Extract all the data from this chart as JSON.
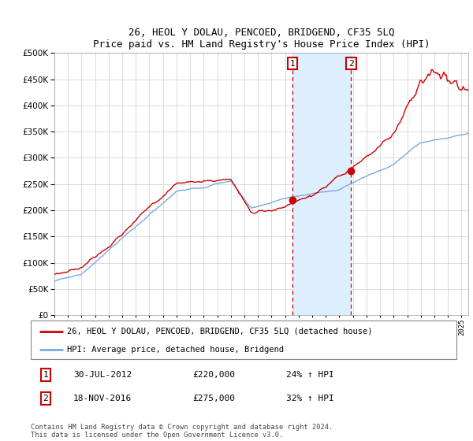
{
  "title": "26, HEOL Y DOLAU, PENCOED, BRIDGEND, CF35 5LQ",
  "subtitle": "Price paid vs. HM Land Registry's House Price Index (HPI)",
  "ytick_values": [
    0,
    50000,
    100000,
    150000,
    200000,
    250000,
    300000,
    350000,
    400000,
    450000,
    500000
  ],
  "ylim": [
    0,
    500000
  ],
  "x_start_year": 1995,
  "x_end_year": 2025,
  "transaction1_x": 2012.54,
  "transaction1_price": 220000,
  "transaction1_label": "30-JUL-2012",
  "transaction1_pct": "24%",
  "transaction2_x": 2016.87,
  "transaction2_price": 275000,
  "transaction2_label": "18-NOV-2016",
  "transaction2_pct": "32%",
  "hpi_line_color": "#7aaadd",
  "price_line_color": "#cc0000",
  "shaded_region_color": "#ddeeff",
  "dashed_line_color": "#cc0000",
  "legend1_text": "26, HEOL Y DOLAU, PENCOED, BRIDGEND, CF35 5LQ (detached house)",
  "legend2_text": "HPI: Average price, detached house, Bridgend",
  "footnote": "Contains HM Land Registry data © Crown copyright and database right 2024.\nThis data is licensed under the Open Government Licence v3.0.",
  "background_color": "#ffffff",
  "grid_color": "#cccccc"
}
